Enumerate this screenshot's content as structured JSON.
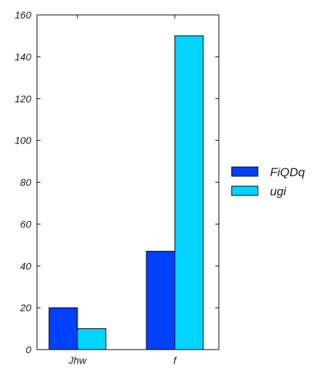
{
  "chart_data": {
    "type": "bar",
    "categories": [
      "Jhw",
      "f"
    ],
    "series": [
      {
        "name": "FiQDq",
        "values": [
          20,
          47
        ],
        "color": "#0040ff"
      },
      {
        "name": "ugi",
        "values": [
          10,
          150
        ],
        "color": "#00d4ff"
      }
    ],
    "ylim": [
      0,
      160
    ],
    "yticks": [
      0,
      20,
      40,
      60,
      80,
      100,
      120,
      140,
      160
    ],
    "title": "",
    "xlabel": "",
    "ylabel": "",
    "grid": false,
    "legend_position": "right"
  }
}
